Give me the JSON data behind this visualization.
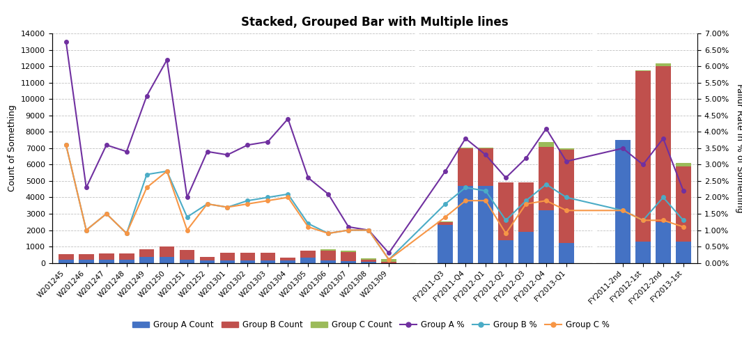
{
  "title": "Stacked, Grouped Bar with Multiple lines",
  "ylabel_left": "Count of Something",
  "ylabel_right": "Failur Rate in % of Something",
  "ylim_left": [
    0,
    14000
  ],
  "ylim_right": [
    0,
    0.07
  ],
  "yticks_left": [
    0,
    1000,
    2000,
    3000,
    4000,
    5000,
    6000,
    7000,
    8000,
    9000,
    10000,
    11000,
    12000,
    13000,
    14000
  ],
  "yticks_right": [
    0.0,
    0.005,
    0.01,
    0.015,
    0.02,
    0.025,
    0.03,
    0.035,
    0.04,
    0.045,
    0.05,
    0.055,
    0.06,
    0.065,
    0.07
  ],
  "ytick_labels_right": [
    "0.00%",
    "0.50%",
    "1.00%",
    "1.50%",
    "2.00%",
    "2.50%",
    "3.00%",
    "3.50%",
    "4.00%",
    "4.50%",
    "5.00%",
    "5.50%",
    "6.00%",
    "6.50%",
    "7.00%"
  ],
  "groups": [
    {
      "label": "W201245",
      "A": 200,
      "B": 350,
      "C": 0,
      "pA": 0.0675,
      "pB": 0.036,
      "pC": 0.036
    },
    {
      "label": "W201246",
      "A": 200,
      "B": 350,
      "C": 0,
      "pA": 0.023,
      "pB": 0.01,
      "pC": 0.01
    },
    {
      "label": "W201247",
      "A": 200,
      "B": 380,
      "C": 0,
      "pA": 0.036,
      "pB": 0.015,
      "pC": 0.015
    },
    {
      "label": "W201248",
      "A": 200,
      "B": 380,
      "C": 0,
      "pA": 0.034,
      "pB": 0.009,
      "pC": 0.009
    },
    {
      "label": "W201249",
      "A": 350,
      "B": 500,
      "C": 0,
      "pA": 0.051,
      "pB": 0.027,
      "pC": 0.023
    },
    {
      "label": "W201250",
      "A": 350,
      "B": 650,
      "C": 0,
      "pA": 0.062,
      "pB": 0.028,
      "pC": 0.028
    },
    {
      "label": "W201251",
      "A": 200,
      "B": 600,
      "C": 0,
      "pA": 0.02,
      "pB": 0.014,
      "pC": 0.01
    },
    {
      "label": "W201252",
      "A": 150,
      "B": 200,
      "C": 0,
      "pA": 0.034,
      "pB": 0.018,
      "pC": 0.018
    },
    {
      "label": "W201301",
      "A": 150,
      "B": 450,
      "C": 0,
      "pA": 0.033,
      "pB": 0.017,
      "pC": 0.017
    },
    {
      "label": "W201302",
      "A": 150,
      "B": 480,
      "C": 0,
      "pA": 0.036,
      "pB": 0.019,
      "pC": 0.018
    },
    {
      "label": "W201303",
      "A": 150,
      "B": 450,
      "C": 0,
      "pA": 0.037,
      "pB": 0.02,
      "pC": 0.019
    },
    {
      "label": "W201304",
      "A": 150,
      "B": 170,
      "C": 0,
      "pA": 0.044,
      "pB": 0.021,
      "pC": 0.02
    },
    {
      "label": "W201305",
      "A": 300,
      "B": 450,
      "C": 0,
      "pA": 0.026,
      "pB": 0.012,
      "pC": 0.011
    },
    {
      "label": "W201306",
      "A": 150,
      "B": 600,
      "C": 60,
      "pA": 0.021,
      "pB": 0.009,
      "pC": 0.009
    },
    {
      "label": "W201307",
      "A": 100,
      "B": 550,
      "C": 80,
      "pA": 0.011,
      "pB": 0.01,
      "pC": 0.01
    },
    {
      "label": "W201308",
      "A": 50,
      "B": 130,
      "C": 100,
      "pA": 0.01,
      "pB": 0.01,
      "pC": 0.01
    },
    {
      "label": "W201309",
      "A": 0,
      "B": 50,
      "C": 200,
      "pA": 0.003,
      "pB": 0.001,
      "pC": 0.001
    },
    {
      "label": "FY2011-Q3",
      "A": 2300,
      "B": 200,
      "C": 30,
      "pA": 0.028,
      "pB": 0.018,
      "pC": 0.014
    },
    {
      "label": "FY2011-Q4",
      "A": 4700,
      "B": 2300,
      "C": 30,
      "pA": 0.038,
      "pB": 0.023,
      "pC": 0.019
    },
    {
      "label": "FY2012-Q1",
      "A": 4700,
      "B": 2300,
      "C": 30,
      "pA": 0.033,
      "pB": 0.022,
      "pC": 0.019
    },
    {
      "label": "FY2012-Q2",
      "A": 1400,
      "B": 3500,
      "C": 30,
      "pA": 0.026,
      "pB": 0.013,
      "pC": 0.009
    },
    {
      "label": "FY2012-Q3",
      "A": 1900,
      "B": 3000,
      "C": 30,
      "pA": 0.032,
      "pB": 0.019,
      "pC": 0.018
    },
    {
      "label": "FY2012-Q4",
      "A": 3200,
      "B": 3900,
      "C": 300,
      "pA": 0.041,
      "pB": 0.024,
      "pC": 0.019
    },
    {
      "label": "FY2013-Q1",
      "A": 1200,
      "B": 5700,
      "C": 100,
      "pA": 0.031,
      "pB": 0.02,
      "pC": 0.016
    },
    {
      "label": "FY2011-2nd",
      "A": 7500,
      "B": 0,
      "C": 0,
      "pA": 0.035,
      "pB": 0.016,
      "pC": 0.016
    },
    {
      "label": "FY2012-1st",
      "A": 1300,
      "B": 10400,
      "C": 50,
      "pA": 0.03,
      "pB": 0.013,
      "pC": 0.013
    },
    {
      "label": "FY2012-2nd",
      "A": 2500,
      "B": 9500,
      "C": 200,
      "pA": 0.038,
      "pB": 0.02,
      "pC": 0.013
    },
    {
      "label": "FY2013-1st",
      "A": 1300,
      "B": 4600,
      "C": 200,
      "pA": 0.022,
      "pB": 0.013,
      "pC": 0.011
    }
  ],
  "group_separators": [
    17,
    24
  ],
  "color_A": "#4472C4",
  "color_B": "#C0504D",
  "color_C": "#9BBB59",
  "color_pA": "#7030A0",
  "color_pB": "#4BACC6",
  "color_pC": "#F79646",
  "background_color": "#FFFFFF",
  "plot_bg_color": "#FFFFFF",
  "grid_color": "#C0C0C0"
}
